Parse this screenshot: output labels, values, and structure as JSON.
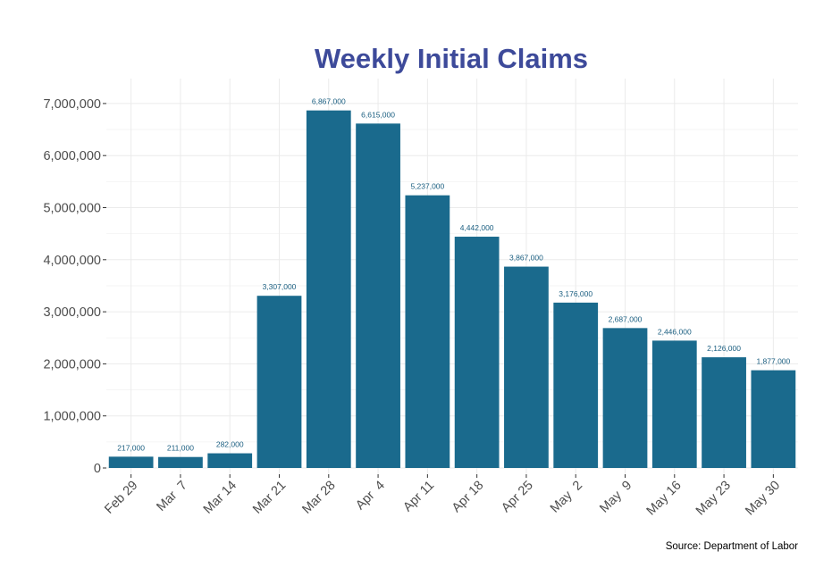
{
  "chart_data": {
    "type": "bar",
    "title": "Weekly Initial Claims",
    "xlabel": "",
    "ylabel": "",
    "categories": [
      "Feb 29",
      "Mar  7",
      "Mar 14",
      "Mar 21",
      "Mar 28",
      "Apr  4",
      "Apr 11",
      "Apr 18",
      "Apr 25",
      "May  2",
      "May  9",
      "May 16",
      "May 23",
      "May 30"
    ],
    "values": [
      217000,
      211000,
      282000,
      3307000,
      6867000,
      6615000,
      5237000,
      4442000,
      3867000,
      3176000,
      2687000,
      2446000,
      2126000,
      1877000
    ],
    "data_labels": [
      "217,000",
      "211,000",
      "282,000",
      "3,307,000",
      "6,867,000",
      "6,615,000",
      "5,237,000",
      "4,442,000",
      "3,867,000",
      "3,176,000",
      "2,687,000",
      "2,446,000",
      "2,126,000",
      "1,877,000"
    ],
    "y_ticks": [
      0,
      1000000,
      2000000,
      3000000,
      4000000,
      5000000,
      6000000,
      7000000
    ],
    "y_tick_labels": [
      "0",
      "1,000,000",
      "2,000,000",
      "3,000,000",
      "4,000,000",
      "5,000,000",
      "6,000,000",
      "7,000,000"
    ],
    "ylim": [
      0,
      7350000
    ],
    "grid": true,
    "legend": "none",
    "colors": {
      "bar": "#1a6a8d",
      "title": "#3d4a9a",
      "data_label": "#1a5e80",
      "grid": "#ebebeb",
      "axis_text": "#4d4d4d"
    },
    "source": "Source: Department of Labor"
  }
}
